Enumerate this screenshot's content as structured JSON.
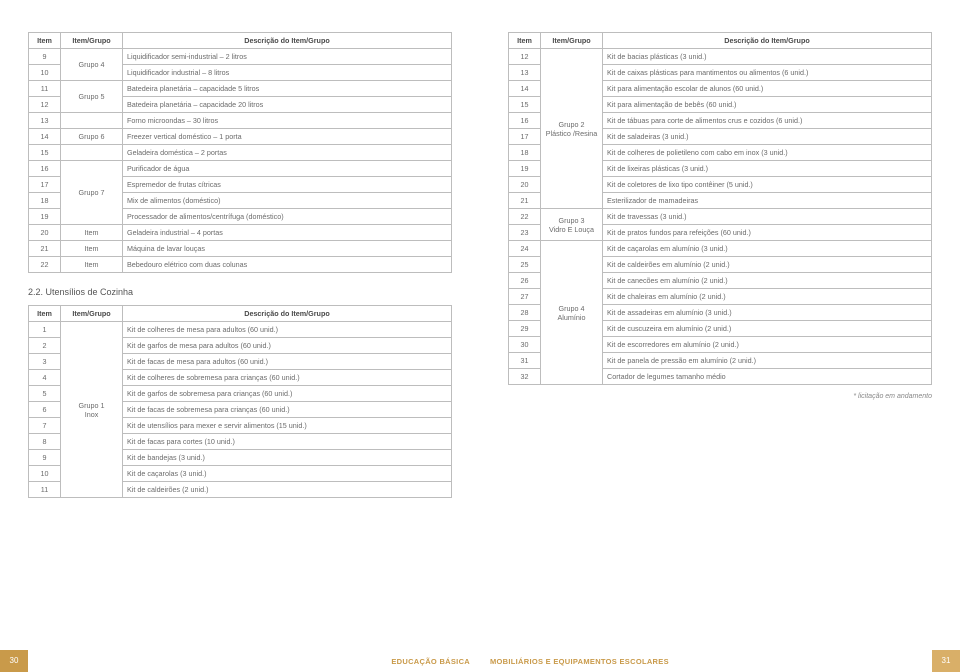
{
  "headers": {
    "item": "Item",
    "group": "Item/Grupo",
    "desc": "Descrição do Item/Grupo"
  },
  "section22": "2.2. Utensílios de Cozinha",
  "footnote": "* licitação em andamento",
  "footer_left_num": "30",
  "footer_left_label": "EDUCAÇÃO BÁSICA",
  "footer_right_label": "MOBILIÁRIOS E EQUIPAMENTOS ESCOLARES",
  "footer_right_num": "31",
  "table_left_a": [
    {
      "n": "9",
      "g": "Grupo 4",
      "gspan": 2,
      "d": "Liquidificador semi-industrial – 2 litros"
    },
    {
      "n": "10",
      "d": "Liquidificador industrial – 8 litros"
    },
    {
      "n": "11",
      "g": "Grupo 5",
      "gspan": 2,
      "d": "Batedeira planetária – capacidade 5 litros"
    },
    {
      "n": "12",
      "d": "Batedeira planetária – capacidade 20 litros"
    },
    {
      "n": "13",
      "g": "",
      "gspan": 1,
      "d": "Forno microondas – 30 litros"
    },
    {
      "n": "14",
      "g": "Grupo 6",
      "gspan": 1,
      "d": "Freezer vertical doméstico – 1 porta"
    },
    {
      "n": "15",
      "g": "",
      "gspan": 1,
      "d": "Geladeira doméstica – 2 portas"
    },
    {
      "n": "16",
      "g": "Grupo 7",
      "gspan": 4,
      "d": "Purificador de água"
    },
    {
      "n": "17",
      "d": "Espremedor de frutas cítricas"
    },
    {
      "n": "18",
      "d": "Mix de alimentos (doméstico)"
    },
    {
      "n": "19",
      "d": "Processador de alimentos/centrífuga (doméstico)"
    },
    {
      "n": "20",
      "g": "Item",
      "gspan": 1,
      "d": "Geladeira industrial – 4 portas"
    },
    {
      "n": "21",
      "g": "Item",
      "gspan": 1,
      "d": "Máquina de lavar louças"
    },
    {
      "n": "22",
      "g": "Item",
      "gspan": 1,
      "d": "Bebedouro elétrico com duas colunas"
    }
  ],
  "table_left_b": [
    {
      "n": "1",
      "g": "Grupo 1\nInox",
      "gspan": 11,
      "d": "Kit de colheres de mesa para adultos (60 unid.)"
    },
    {
      "n": "2",
      "d": "Kit de garfos de mesa para adultos (60 unid.)"
    },
    {
      "n": "3",
      "d": "Kit de facas de mesa para adultos (60 unid.)"
    },
    {
      "n": "4",
      "d": "Kit de colheres de sobremesa para crianças (60 unid.)"
    },
    {
      "n": "5",
      "d": "Kit de garfos de sobremesa para crianças (60 unid.)"
    },
    {
      "n": "6",
      "d": "Kit de facas de sobremesa para crianças (60 unid.)"
    },
    {
      "n": "7",
      "d": "Kit de utensílios para mexer e servir alimentos (15 unid.)"
    },
    {
      "n": "8",
      "d": "Kit de facas para cortes (10 unid.)"
    },
    {
      "n": "9",
      "d": "Kit de bandejas (3 unid.)"
    },
    {
      "n": "10",
      "d": "Kit de caçarolas (3 unid.)"
    },
    {
      "n": "11",
      "d": "Kit de caldeirões (2 unid.)"
    }
  ],
  "table_right": [
    {
      "n": "12",
      "g": "Grupo 2\nPlástico /Resina",
      "gspan": 10,
      "d": "Kit de bacias plásticas (3 unid.)"
    },
    {
      "n": "13",
      "d": "Kit de caixas plásticas para mantimentos ou alimentos (6 unid.)"
    },
    {
      "n": "14",
      "d": "Kit para alimentação escolar de alunos (60 unid.)"
    },
    {
      "n": "15",
      "d": "Kit para alimentação de bebês (60 unid.)"
    },
    {
      "n": "16",
      "d": "Kit de tábuas para corte de alimentos crus e cozidos (6 unid.)"
    },
    {
      "n": "17",
      "d": "Kit de saladeiras (3 unid.)"
    },
    {
      "n": "18",
      "d": "Kit de colheres de polietileno com cabo em inox (3 unid.)"
    },
    {
      "n": "19",
      "d": "Kit de lixeiras plásticas (3 unid.)"
    },
    {
      "n": "20",
      "d": "Kit de coletores de lixo tipo contêiner (5 unid.)"
    },
    {
      "n": "21",
      "d": "Esterilizador de mamadeiras"
    },
    {
      "n": "22",
      "g": "Grupo 3\nVidro E Louça",
      "gspan": 2,
      "d": "Kit de travessas (3 unid.)"
    },
    {
      "n": "23",
      "d": "Kit de pratos fundos para refeições (60 unid.)"
    },
    {
      "n": "24",
      "g": "Grupo 4\nAlumínio",
      "gspan": 9,
      "d": "Kit de caçarolas em alumínio (3 unid.)"
    },
    {
      "n": "25",
      "d": "Kit de caldeirões em alumínio (2 unid.)"
    },
    {
      "n": "26",
      "d": "Kit de canecões em alumínio (2 unid.)"
    },
    {
      "n": "27",
      "d": "Kit de chaleiras em alumínio (2 unid.)"
    },
    {
      "n": "28",
      "d": "Kit de assadeiras em alumínio (3 unid.)"
    },
    {
      "n": "29",
      "d": "Kit de cuscuzeira em alumínio (2 unid.)"
    },
    {
      "n": "30",
      "d": "Kit de escorredores em alumínio (2 unid.)"
    },
    {
      "n": "31",
      "d": "Kit de panela de pressão em alumínio (2 unid.)"
    },
    {
      "n": "32",
      "d": "Cortador de legumes tamanho médio"
    }
  ]
}
